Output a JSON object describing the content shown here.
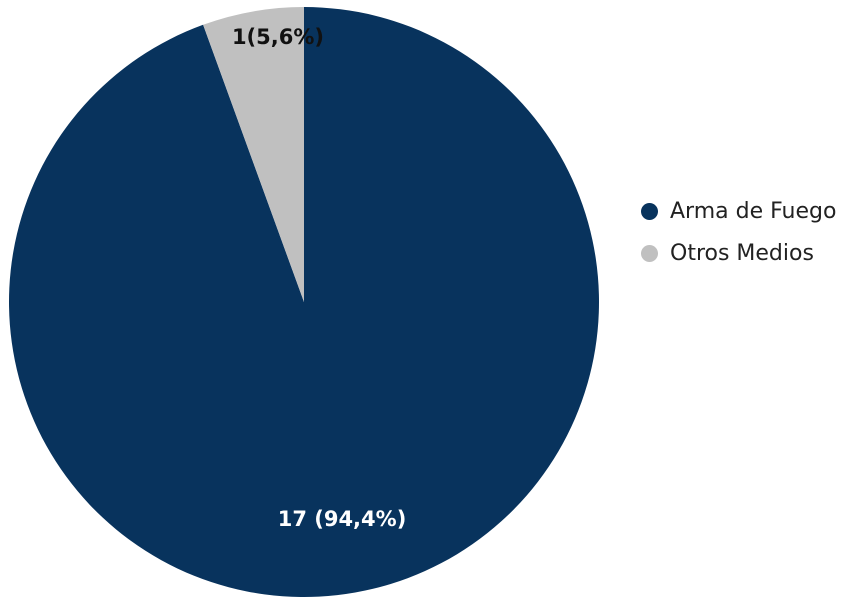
{
  "chart_data": {
    "type": "pie",
    "title": "",
    "categories": [
      "Arma de Fuego",
      "Otros Medios"
    ],
    "values": [
      17,
      1
    ],
    "percentages": [
      94.4,
      5.6
    ],
    "labels": [
      "17 (94,4%)",
      "1(5,6%)"
    ],
    "colors": [
      "#08335d",
      "#c0c0c0"
    ],
    "label_colors": [
      "#ffffff",
      "#111111"
    ],
    "start_angle": "12 o'clock",
    "direction": "clockwise",
    "legend_position": "right"
  }
}
